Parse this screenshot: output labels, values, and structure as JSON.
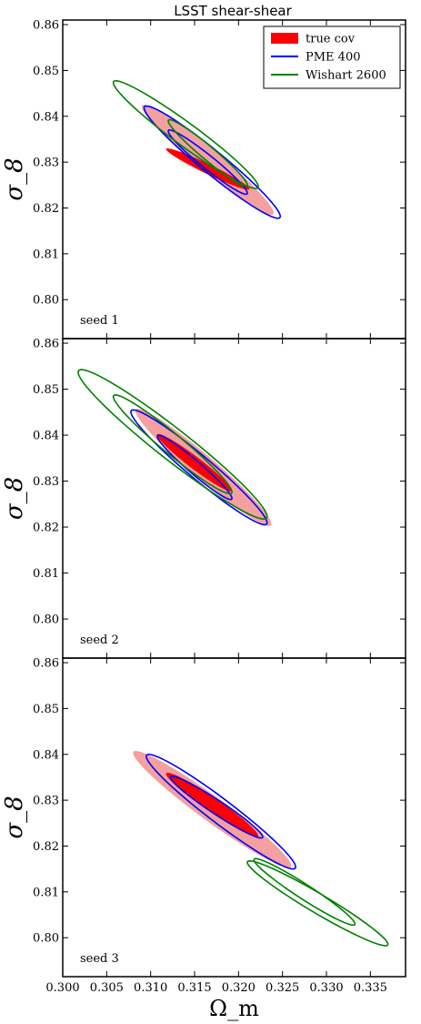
{
  "chart_data": {
    "type": "contour",
    "title": "LSST shear-shear",
    "xlabel": "Ω_m",
    "ylabel": "σ_8",
    "xlim": [
      0.3,
      0.339
    ],
    "ylim": [
      0.7915,
      0.861
    ],
    "xticks": [
      "0.300",
      "0.305",
      "0.310",
      "0.315",
      "0.320",
      "0.325",
      "0.330",
      "0.335"
    ],
    "yticks": [
      "0.80",
      "0.81",
      "0.82",
      "0.83",
      "0.84",
      "0.85",
      "0.86"
    ],
    "xtick_values": [
      0.3,
      0.305,
      0.31,
      0.315,
      0.32,
      0.325,
      0.33,
      0.335
    ],
    "ytick_values": [
      0.8,
      0.81,
      0.82,
      0.83,
      0.84,
      0.85,
      0.86
    ],
    "legend": {
      "placement": "top-right",
      "entries": [
        {
          "label": "true cov",
          "color": "#ff0000",
          "style": "filled"
        },
        {
          "label": "PME 400",
          "color": "#0000ff",
          "style": "line"
        },
        {
          "label": "Wishart 2600",
          "color": "#008000",
          "style": "line"
        }
      ]
    },
    "colors": {
      "true_cov_inner": "#ff0000",
      "true_cov_outer": "#f4a0a0",
      "pme": "#0000ff",
      "wishart": "#008000"
    },
    "panels": [
      {
        "label": "seed 1",
        "contours": {
          "true_cov": [
            {
              "level": "1sigma",
              "cx": 0.3165,
              "cy": 0.8285,
              "x_min": 0.312,
              "x_max": 0.3215,
              "y_min": 0.824,
              "y_max": 0.833
            },
            {
              "level": "2sigma",
              "cx": 0.3165,
              "cy": 0.8305,
              "x_min": 0.309,
              "x_max": 0.324,
              "y_min": 0.8185,
              "y_max": 0.8425
            }
          ],
          "pme_400": [
            {
              "level": "1sigma",
              "cx": 0.3165,
              "cy": 0.83,
              "x_min": 0.312,
              "x_max": 0.321,
              "y_min": 0.823,
              "y_max": 0.837
            },
            {
              "level": "2sigma",
              "cx": 0.317,
              "cy": 0.83,
              "x_min": 0.3095,
              "x_max": 0.325,
              "y_min": 0.818,
              "y_max": 0.8425
            }
          ],
          "wishart_2600": [
            {
              "level": "1sigma",
              "cx": 0.3165,
              "cy": 0.832,
              "x_min": 0.312,
              "x_max": 0.321,
              "y_min": 0.825,
              "y_max": 0.8395
            },
            {
              "level": "2sigma",
              "cx": 0.314,
              "cy": 0.836,
              "x_min": 0.3055,
              "x_max": 0.322,
              "y_min": 0.8245,
              "y_max": 0.848
            }
          ]
        }
      },
      {
        "label": "seed 2",
        "contours": {
          "true_cov": [
            {
              "level": "1sigma",
              "cx": 0.315,
              "cy": 0.834,
              "x_min": 0.311,
              "x_max": 0.3195,
              "y_min": 0.827,
              "y_max": 0.8395
            },
            {
              "level": "2sigma",
              "cx": 0.316,
              "cy": 0.833,
              "x_min": 0.308,
              "x_max": 0.3235,
              "y_min": 0.82,
              "y_max": 0.8455
            }
          ],
          "pme_400": [
            {
              "level": "1sigma",
              "cx": 0.315,
              "cy": 0.833,
              "x_min": 0.311,
              "x_max": 0.3195,
              "y_min": 0.826,
              "y_max": 0.84
            },
            {
              "level": "2sigma",
              "cx": 0.3155,
              "cy": 0.833,
              "x_min": 0.308,
              "x_max": 0.3235,
              "y_min": 0.8205,
              "y_max": 0.8455
            }
          ],
          "wishart_2600": [
            {
              "level": "1sigma",
              "cx": 0.3125,
              "cy": 0.838,
              "x_min": 0.3055,
              "x_max": 0.319,
              "y_min": 0.827,
              "y_max": 0.8485
            },
            {
              "level": "2sigma",
              "cx": 0.3125,
              "cy": 0.838,
              "x_min": 0.3015,
              "x_max": 0.323,
              "y_min": 0.821,
              "y_max": 0.8535
            }
          ]
        }
      },
      {
        "label": "seed 3",
        "contours": {
          "true_cov": [
            {
              "level": "1sigma",
              "cx": 0.317,
              "cy": 0.829,
              "x_min": 0.3115,
              "x_max": 0.322,
              "y_min": 0.822,
              "y_max": 0.836
            },
            {
              "level": "2sigma",
              "cx": 0.317,
              "cy": 0.828,
              "x_min": 0.3085,
              "x_max": 0.3265,
              "y_min": 0.816,
              "y_max": 0.8415
            }
          ],
          "pme_400": [
            {
              "level": "1sigma",
              "cx": 0.3175,
              "cy": 0.8285,
              "x_min": 0.312,
              "x_max": 0.3225,
              "y_min": 0.8215,
              "y_max": 0.835
            },
            {
              "level": "2sigma",
              "cx": 0.318,
              "cy": 0.8275,
              "x_min": 0.31,
              "x_max": 0.327,
              "y_min": 0.815,
              "y_max": 0.84
            }
          ],
          "wishart_2600": [
            {
              "level": "1sigma",
              "cx": 0.3275,
              "cy": 0.81,
              "x_min": 0.322,
              "x_max": 0.3335,
              "y_min": 0.803,
              "y_max": 0.8175
            },
            {
              "level": "2sigma",
              "cx": 0.329,
              "cy": 0.8075,
              "x_min": 0.322,
              "x_max": 0.338,
              "y_min": 0.799,
              "y_max": 0.8175
            }
          ]
        }
      }
    ]
  }
}
